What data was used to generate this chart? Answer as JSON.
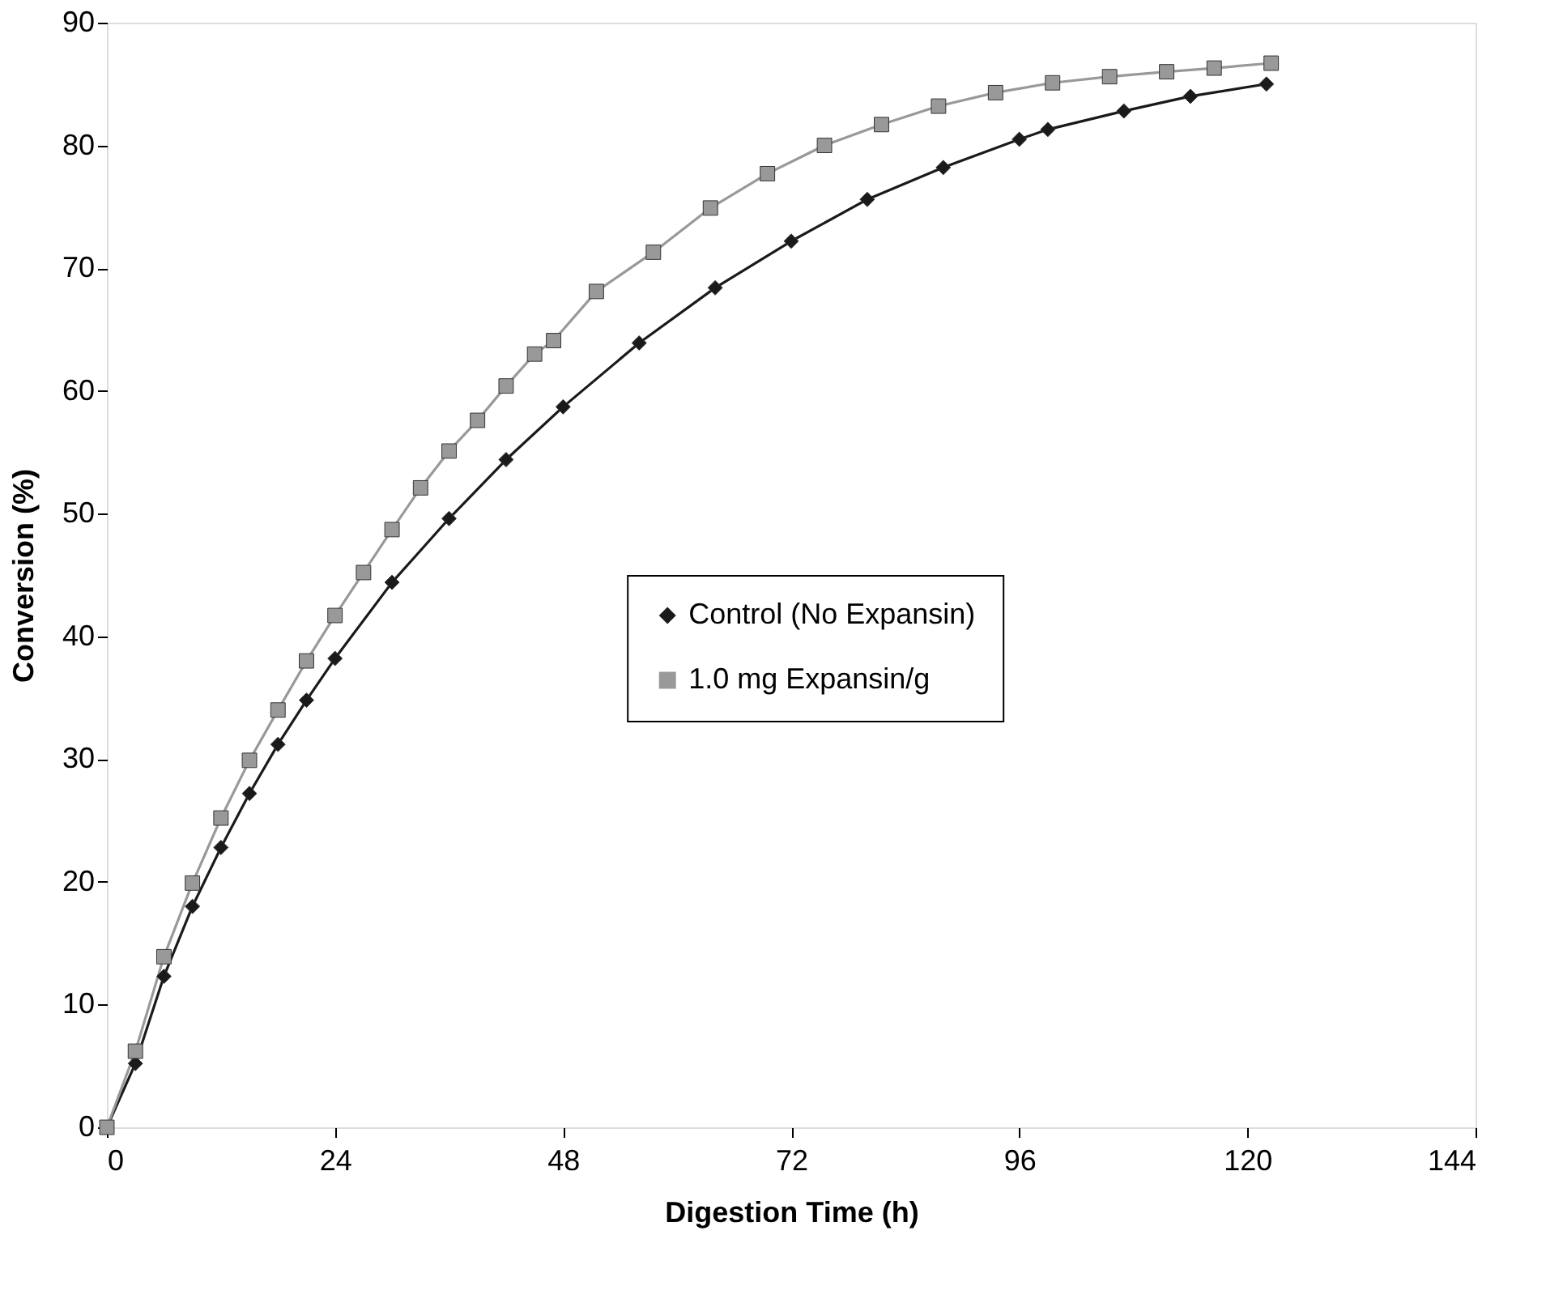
{
  "chart_data": {
    "type": "line",
    "xlabel": "Digestion Time (h)",
    "ylabel": "Conversion (%)",
    "xlim": [
      0,
      144
    ],
    "xticks": [
      0,
      24,
      48,
      72,
      96,
      120,
      144
    ],
    "ylim": [
      0,
      90
    ],
    "yticks": [
      0,
      10,
      20,
      30,
      40,
      50,
      60,
      70,
      80,
      90
    ],
    "grid": false,
    "legend": "center",
    "line_style": "solid",
    "series": [
      {
        "name": "Control (No Expansin)",
        "color": "#1a1a1a",
        "marker": "diamond",
        "x": [
          0,
          3,
          6,
          9,
          12,
          15,
          18,
          21,
          24,
          30,
          36,
          42,
          48,
          56,
          64,
          72,
          80,
          88,
          96,
          99,
          107,
          114,
          122
        ],
        "values": [
          0,
          5.2,
          12.3,
          18.0,
          22.8,
          27.2,
          31.2,
          34.8,
          38.2,
          44.4,
          49.6,
          54.4,
          58.7,
          63.9,
          68.4,
          72.2,
          75.6,
          78.2,
          80.5,
          81.3,
          82.8,
          84.0,
          85.0
        ]
      },
      {
        "name": "1.0 mg Expansin/g",
        "color": "#999999",
        "marker": "square",
        "x": [
          0,
          3,
          6,
          9,
          12,
          15,
          18,
          21,
          24,
          27,
          30,
          33,
          36,
          39,
          42,
          45,
          47,
          51.5,
          57.5,
          63.5,
          69.5,
          75.5,
          81.5,
          87.5,
          93.5,
          99.5,
          105.5,
          111.5,
          116.5,
          122.5
        ],
        "values": [
          0,
          6.2,
          13.9,
          19.9,
          25.2,
          29.9,
          34.0,
          38.0,
          41.7,
          45.2,
          48.7,
          52.1,
          55.1,
          57.6,
          60.4,
          63.0,
          64.1,
          68.1,
          71.3,
          74.9,
          77.7,
          80.0,
          81.7,
          83.2,
          84.3,
          85.1,
          85.6,
          86.0,
          86.3,
          86.7
        ]
      }
    ]
  }
}
